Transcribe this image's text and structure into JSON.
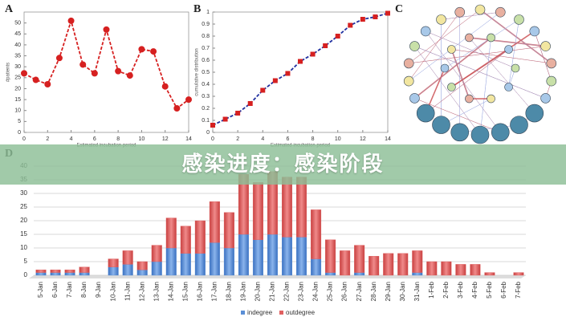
{
  "banner": "感染进度：感染阶段",
  "panel_labels": [
    "A",
    "B",
    "C",
    "D"
  ],
  "chart_data": [
    {
      "type": "line",
      "xlabel": "Estimated incubation period",
      "ylabel": "#patients",
      "color": "#d62020",
      "x": [
        0,
        1,
        2,
        3,
        4,
        5,
        6,
        7,
        8,
        9,
        10,
        11,
        12,
        13,
        14
      ],
      "values": [
        27,
        24,
        22,
        34,
        51,
        31,
        27,
        47,
        28,
        26,
        38,
        37,
        21,
        11,
        15
      ],
      "xlim": [
        0,
        14
      ],
      "xticks": [
        0,
        2,
        4,
        6,
        8,
        10,
        12,
        14
      ],
      "ylim": [
        0,
        55
      ],
      "yticks": [
        0,
        5,
        10,
        15,
        20,
        25,
        30,
        35,
        40,
        45,
        50
      ]
    },
    {
      "type": "line",
      "xlabel": "Estimated incubation period",
      "ylabel": "cumulative distribution",
      "color": "#2030a0",
      "marker_color": "#d62020",
      "x": [
        0,
        1,
        2,
        3,
        4,
        5,
        6,
        7,
        8,
        9,
        10,
        11,
        12,
        13,
        14
      ],
      "values": [
        0.06,
        0.11,
        0.16,
        0.24,
        0.35,
        0.43,
        0.49,
        0.59,
        0.65,
        0.72,
        0.8,
        0.89,
        0.94,
        0.96,
        0.99
      ],
      "xlim": [
        0,
        14
      ],
      "xticks": [
        0,
        2,
        4,
        6,
        8,
        10,
        12,
        14
      ],
      "ylim": [
        0,
        1
      ],
      "yticks": [
        0,
        0.1,
        0.2,
        0.3,
        0.4,
        0.5,
        0.6,
        0.7,
        0.8,
        0.9,
        1
      ]
    },
    {
      "type": "stackedbar",
      "grid": true,
      "categories": [
        "5-Jan",
        "6-Jan",
        "7-Jan",
        "8-Jan",
        "9-Jan",
        "10-Jan",
        "11-Jan",
        "12-Jan",
        "13-Jan",
        "14-Jan",
        "15-Jan",
        "16-Jan",
        "17-Jan",
        "18-Jan",
        "19-Jan",
        "20-Jan",
        "21-Jan",
        "22-Jan",
        "23-Jan",
        "24-Jan",
        "25-Jan",
        "26-Jan",
        "27-Jan",
        "28-Jan",
        "29-Jan",
        "30-Jan",
        "31-Jan",
        "1-Feb",
        "2-Feb",
        "3-Feb",
        "4-Feb",
        "5-Feb",
        "6-Feb",
        "7-Feb"
      ],
      "series": [
        {
          "name": "indegree",
          "color": "#5b8fd6",
          "values": [
            1,
            1,
            1,
            1,
            0,
            3,
            4,
            2,
            5,
            10,
            8,
            8,
            12,
            10,
            15,
            13,
            15,
            14,
            14,
            6,
            1,
            0,
            1,
            0,
            0,
            0,
            1,
            0,
            0,
            0,
            0,
            0,
            0,
            0
          ]
        },
        {
          "name": "outdegree",
          "color": "#e06060",
          "values": [
            1,
            1,
            1,
            2,
            0,
            3,
            5,
            3,
            6,
            11,
            10,
            12,
            15,
            13,
            22,
            21,
            23,
            22,
            22,
            18,
            12,
            9,
            10,
            7,
            8,
            8,
            8,
            5,
            5,
            4,
            4,
            1,
            0,
            1
          ]
        }
      ],
      "ylim": [
        0,
        40
      ],
      "yticks": [
        0,
        5,
        10,
        15,
        20,
        25,
        30,
        35,
        40
      ]
    }
  ]
}
